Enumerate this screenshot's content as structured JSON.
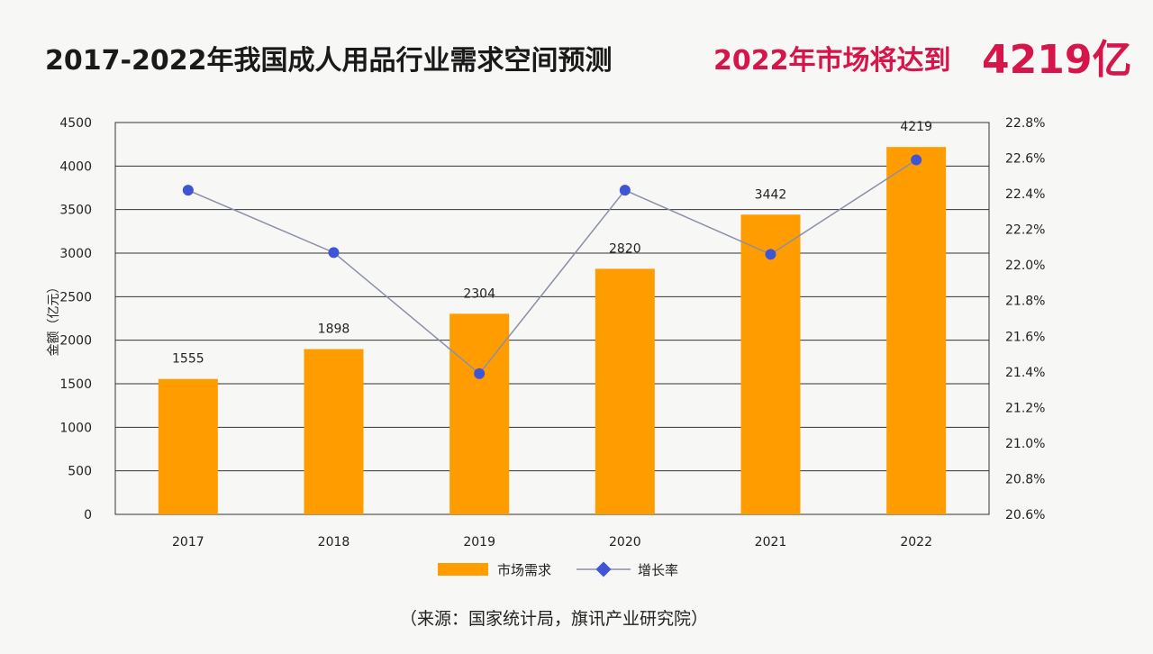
{
  "title": {
    "main": "2017-2022年我国成人用品行业需求空间预测",
    "sub": "2022年市场将达到",
    "highlight": "4219亿"
  },
  "colors": {
    "bar": "#ff9d00",
    "line": "#8a8fa8",
    "marker": "#3f55d6",
    "title_accent": "#d6154a",
    "grid": "#333333"
  },
  "chart_data": {
    "type": "bar",
    "categories": [
      "2017",
      "2018",
      "2019",
      "2020",
      "2021",
      "2022"
    ],
    "series": [
      {
        "name": "市场需求",
        "type": "bar",
        "axis": "left",
        "values": [
          1555,
          1898,
          2304,
          2820,
          3442,
          4219
        ],
        "data_labels": [
          "1555",
          "1898",
          "2304",
          "2820",
          "3442",
          "4219"
        ]
      },
      {
        "name": "增长率",
        "type": "line",
        "axis": "right",
        "values": [
          22.42,
          22.07,
          21.39,
          22.42,
          22.06,
          22.59
        ]
      }
    ],
    "ylabel": "金额（亿元）",
    "ylim": [
      0,
      4500
    ],
    "yticks": [
      "0",
      "500",
      "1000",
      "1500",
      "2000",
      "2500",
      "3000",
      "3500",
      "4000",
      "4500"
    ],
    "y2lim": [
      20.6,
      22.8
    ],
    "y2ticks": [
      "20.6%",
      "20.8%",
      "21.0%",
      "21.2%",
      "21.4%",
      "21.6%",
      "21.8%",
      "22.0%",
      "22.2%",
      "22.4%",
      "22.6%",
      "22.8%"
    ],
    "grid": true,
    "legend": "bottom",
    "legend_items": [
      "市场需求",
      "增长率"
    ]
  },
  "source": "（来源：国家统计局，旗讯产业研究院）"
}
